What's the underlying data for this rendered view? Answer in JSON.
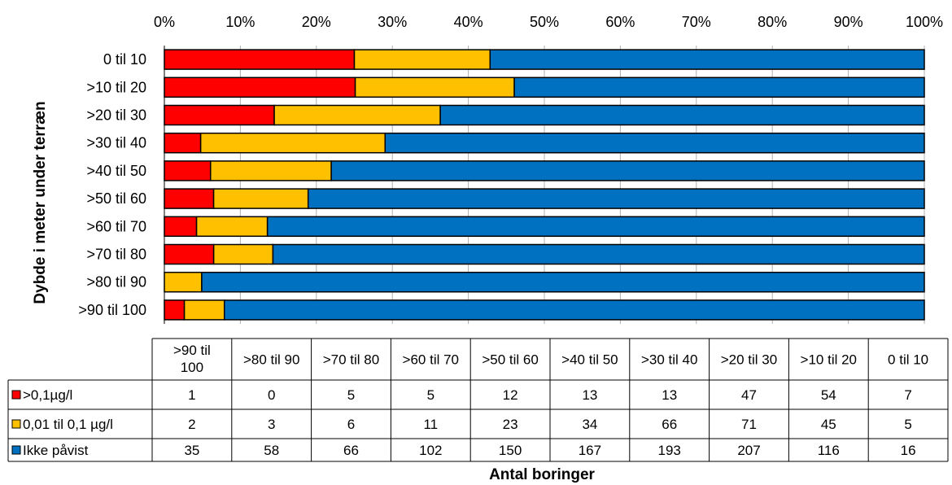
{
  "chart_data": {
    "type": "bar",
    "orientation": "horizontal",
    "stacked": "percent",
    "ylabel": "Dybde i meter under  terræn",
    "xlabel": "Antal boringer",
    "xlim": [
      0,
      100
    ],
    "x_ticks": [
      "0%",
      "10%",
      "20%",
      "30%",
      "40%",
      "50%",
      "60%",
      "70%",
      "80%",
      "90%",
      "100%"
    ],
    "grid": true,
    "bar_categories": [
      "0 til 10",
      ">10 til 20",
      ">20 til 30",
      ">30 til 40",
      ">40 til 50",
      ">50 til 60",
      ">60 til 70",
      ">70 til 80",
      ">80 til 90",
      ">90 til 100"
    ],
    "table_categories": [
      ">90 til 100",
      ">80 til 90",
      ">70 til 80",
      ">60 til 70",
      ">50 til 60",
      ">40 til 50",
      ">30 til 40",
      ">20 til 30",
      ">10 til 20",
      "0 til 10"
    ],
    "series": [
      {
        "name": ">0,1µg/l",
        "color": "#ff0000",
        "values": [
          1,
          0,
          5,
          5,
          12,
          13,
          13,
          47,
          54,
          7
        ]
      },
      {
        "name": "0,01 til 0,1 µg/l",
        "color": "#ffc000",
        "values": [
          2,
          3,
          6,
          11,
          23,
          34,
          66,
          71,
          45,
          5
        ]
      },
      {
        "name": "Ikke påvist",
        "color": "#0070c0",
        "values": [
          35,
          58,
          66,
          102,
          150,
          167,
          193,
          207,
          116,
          16
        ]
      }
    ]
  }
}
